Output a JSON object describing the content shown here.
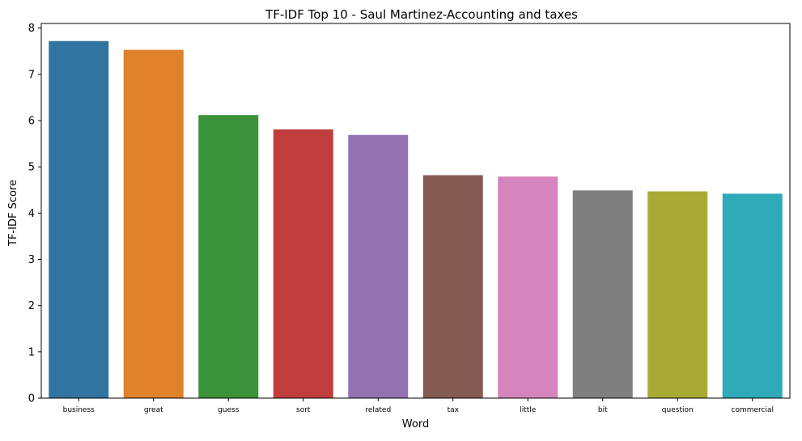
{
  "chart_data": {
    "type": "bar",
    "title": "TF-IDF Top 10 - Saul Martinez-Accounting and taxes",
    "xlabel": "Word",
    "ylabel": "TF-IDF Score",
    "categories": [
      "business",
      "great",
      "guess",
      "sort",
      "related",
      "tax",
      "little",
      "bit",
      "question",
      "commercial"
    ],
    "values": [
      7.72,
      7.53,
      6.12,
      5.81,
      5.69,
      4.82,
      4.79,
      4.49,
      4.47,
      4.42
    ],
    "colors": [
      "#3274a1",
      "#e1812c",
      "#3a923a",
      "#c03d3e",
      "#9372b2",
      "#845b53",
      "#d684bd",
      "#7f7f7f",
      "#a9aa35",
      "#2eaab8"
    ],
    "ylim": [
      0,
      8.1
    ],
    "yticks": [
      0,
      1,
      2,
      3,
      4,
      5,
      6,
      7,
      8
    ],
    "grid": false,
    "legend": "none"
  }
}
